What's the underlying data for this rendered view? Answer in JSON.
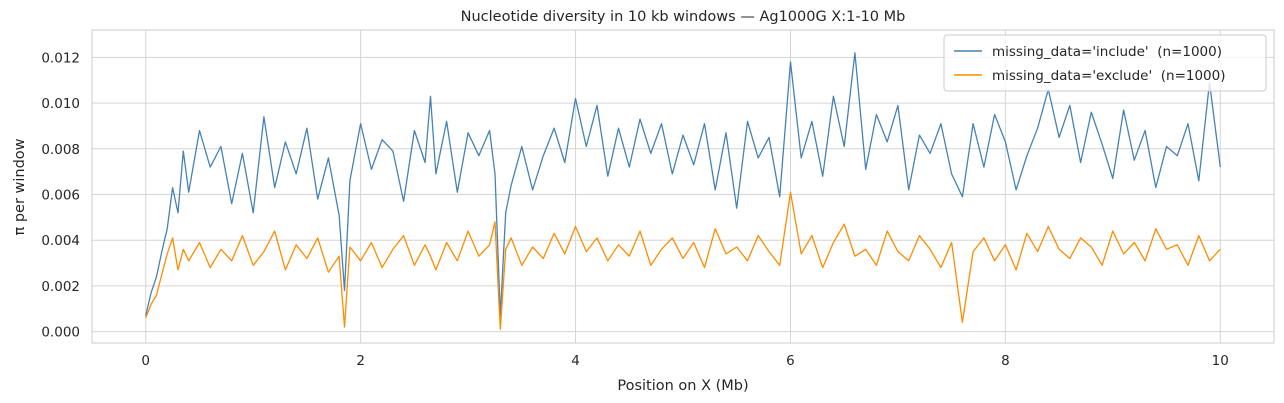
{
  "chart_data": {
    "type": "line",
    "title": "Nucleotide diversity in 10 kb windows — Ag1000G X:1-10 Mb",
    "xlabel": "Position on X (Mb)",
    "ylabel": "π per window",
    "xlim": [
      -0.5,
      10.5
    ],
    "ylim": [
      -0.0005,
      0.0132
    ],
    "xticks": [
      0,
      2,
      4,
      6,
      8,
      10
    ],
    "xtick_labels": [
      "0",
      "2",
      "4",
      "6",
      "8",
      "10"
    ],
    "yticks": [
      0.0,
      0.002,
      0.004,
      0.006,
      0.008,
      0.01,
      0.012
    ],
    "ytick_labels": [
      "0.000",
      "0.002",
      "0.004",
      "0.006",
      "0.008",
      "0.010",
      "0.012"
    ],
    "grid": true,
    "legend_position": "top-right",
    "series": [
      {
        "name": "missing_data='include'  (n=1000)",
        "color": "#4682b4",
        "x": [
          0.0,
          0.05,
          0.1,
          0.15,
          0.2,
          0.25,
          0.3,
          0.35,
          0.4,
          0.5,
          0.6,
          0.7,
          0.8,
          0.9,
          1.0,
          1.1,
          1.2,
          1.3,
          1.4,
          1.5,
          1.6,
          1.7,
          1.8,
          1.85,
          1.9,
          2.0,
          2.1,
          2.2,
          2.3,
          2.4,
          2.5,
          2.6,
          2.65,
          2.7,
          2.8,
          2.9,
          3.0,
          3.1,
          3.2,
          3.25,
          3.3,
          3.35,
          3.4,
          3.5,
          3.6,
          3.7,
          3.8,
          3.9,
          4.0,
          4.1,
          4.2,
          4.3,
          4.4,
          4.5,
          4.6,
          4.7,
          4.8,
          4.9,
          5.0,
          5.1,
          5.2,
          5.3,
          5.4,
          5.5,
          5.6,
          5.7,
          5.8,
          5.9,
          6.0,
          6.1,
          6.2,
          6.3,
          6.4,
          6.5,
          6.6,
          6.7,
          6.8,
          6.9,
          7.0,
          7.1,
          7.2,
          7.3,
          7.4,
          7.5,
          7.6,
          7.7,
          7.8,
          7.9,
          8.0,
          8.1,
          8.2,
          8.3,
          8.4,
          8.5,
          8.6,
          8.7,
          8.8,
          8.9,
          9.0,
          9.1,
          9.2,
          9.3,
          9.4,
          9.5,
          9.6,
          9.7,
          9.8,
          9.9,
          10.0
        ],
        "y": [
          0.0007,
          0.0017,
          0.0024,
          0.0035,
          0.0045,
          0.0063,
          0.0052,
          0.0079,
          0.0061,
          0.0088,
          0.0072,
          0.0081,
          0.0056,
          0.0078,
          0.0052,
          0.0094,
          0.0063,
          0.0083,
          0.0069,
          0.0089,
          0.0058,
          0.0076,
          0.0051,
          0.0018,
          0.0066,
          0.0091,
          0.0071,
          0.0084,
          0.0079,
          0.0057,
          0.0088,
          0.0074,
          0.0103,
          0.0069,
          0.0092,
          0.0061,
          0.0087,
          0.0077,
          0.0088,
          0.0069,
          0.0007,
          0.0052,
          0.0064,
          0.0081,
          0.0062,
          0.0077,
          0.0089,
          0.0074,
          0.0102,
          0.0081,
          0.0099,
          0.0068,
          0.0089,
          0.0072,
          0.0093,
          0.0078,
          0.0091,
          0.0069,
          0.0086,
          0.0073,
          0.0091,
          0.0062,
          0.0087,
          0.0054,
          0.0092,
          0.0076,
          0.0085,
          0.0059,
          0.0118,
          0.0076,
          0.0092,
          0.0068,
          0.0103,
          0.0081,
          0.0122,
          0.0071,
          0.0095,
          0.0083,
          0.0099,
          0.0062,
          0.0086,
          0.0078,
          0.0091,
          0.0069,
          0.0059,
          0.0091,
          0.0072,
          0.0095,
          0.0083,
          0.0062,
          0.0077,
          0.0089,
          0.0106,
          0.0085,
          0.0099,
          0.0074,
          0.0096,
          0.0082,
          0.0067,
          0.0097,
          0.0075,
          0.0088,
          0.0063,
          0.0081,
          0.0077,
          0.0091,
          0.0066,
          0.0109,
          0.0072
        ]
      },
      {
        "name": "missing_data='exclude'  (n=1000)",
        "color": "#ff8c00",
        "x": [
          0.0,
          0.05,
          0.1,
          0.15,
          0.2,
          0.25,
          0.3,
          0.35,
          0.4,
          0.5,
          0.6,
          0.7,
          0.8,
          0.9,
          1.0,
          1.1,
          1.2,
          1.3,
          1.4,
          1.5,
          1.6,
          1.7,
          1.8,
          1.85,
          1.9,
          2.0,
          2.1,
          2.2,
          2.3,
          2.4,
          2.5,
          2.6,
          2.65,
          2.7,
          2.8,
          2.9,
          3.0,
          3.1,
          3.2,
          3.25,
          3.3,
          3.35,
          3.4,
          3.5,
          3.6,
          3.7,
          3.8,
          3.9,
          4.0,
          4.1,
          4.2,
          4.3,
          4.4,
          4.5,
          4.6,
          4.7,
          4.8,
          4.9,
          5.0,
          5.1,
          5.2,
          5.3,
          5.4,
          5.5,
          5.6,
          5.7,
          5.8,
          5.9,
          6.0,
          6.1,
          6.2,
          6.3,
          6.4,
          6.5,
          6.6,
          6.7,
          6.8,
          6.9,
          7.0,
          7.1,
          7.2,
          7.3,
          7.4,
          7.5,
          7.6,
          7.7,
          7.8,
          7.9,
          8.0,
          8.1,
          8.2,
          8.3,
          8.4,
          8.5,
          8.6,
          8.7,
          8.8,
          8.9,
          9.0,
          9.1,
          9.2,
          9.3,
          9.4,
          9.5,
          9.6,
          9.7,
          9.8,
          9.9,
          10.0
        ],
        "y": [
          0.0006,
          0.0012,
          0.0016,
          0.0025,
          0.0034,
          0.0041,
          0.0027,
          0.0036,
          0.0031,
          0.0039,
          0.0028,
          0.0036,
          0.0031,
          0.0042,
          0.0029,
          0.0035,
          0.0044,
          0.0027,
          0.0038,
          0.0032,
          0.0041,
          0.0026,
          0.0033,
          0.0002,
          0.0037,
          0.0031,
          0.0039,
          0.0028,
          0.0036,
          0.0042,
          0.0029,
          0.0038,
          0.0033,
          0.0027,
          0.0039,
          0.0031,
          0.0044,
          0.0033,
          0.0038,
          0.0048,
          0.0001,
          0.0036,
          0.0041,
          0.0029,
          0.0037,
          0.0032,
          0.0043,
          0.0034,
          0.0046,
          0.0035,
          0.0041,
          0.0031,
          0.0038,
          0.0033,
          0.0044,
          0.0029,
          0.0036,
          0.0041,
          0.0032,
          0.0039,
          0.0028,
          0.0045,
          0.0034,
          0.0037,
          0.0031,
          0.0042,
          0.0035,
          0.0029,
          0.0061,
          0.0034,
          0.0042,
          0.0028,
          0.0039,
          0.0047,
          0.0033,
          0.0036,
          0.0029,
          0.0044,
          0.0035,
          0.0031,
          0.0042,
          0.0036,
          0.0028,
          0.0039,
          0.0004,
          0.0035,
          0.0041,
          0.0031,
          0.0038,
          0.0027,
          0.0043,
          0.0035,
          0.0046,
          0.0036,
          0.0032,
          0.0041,
          0.0037,
          0.0029,
          0.0044,
          0.0034,
          0.0039,
          0.0031,
          0.0045,
          0.0036,
          0.0038,
          0.0029,
          0.0042,
          0.0031,
          0.0036
        ]
      }
    ]
  }
}
